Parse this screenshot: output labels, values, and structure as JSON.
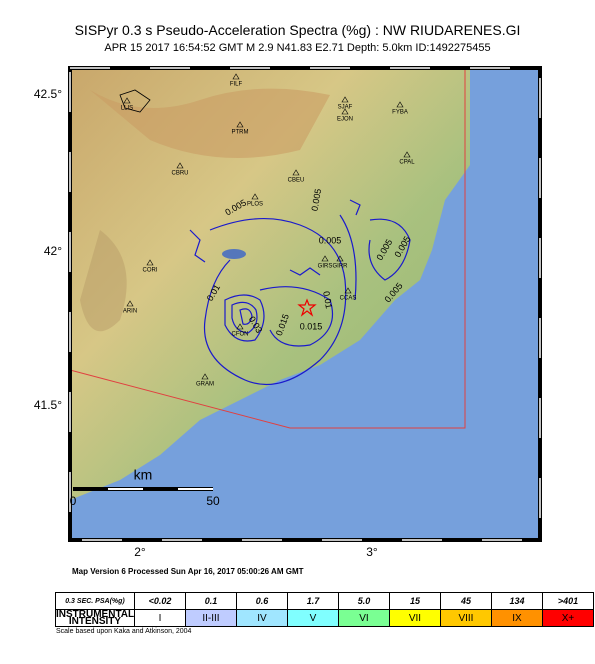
{
  "header": {
    "title": "SISPyr 0.3 s Pseudo-Acceleration Spectra (%g) : NW RIUDARENES.GI",
    "subtitle": "APR 15 2017 16:54:52  GMT    M 2.9    N41.83 E2.71    Depth: 5.0km    ID:1492275455"
  },
  "map": {
    "lat_labels": [
      "42.5°",
      "42°",
      "41.5°"
    ],
    "lon_labels": [
      "2°",
      "3°"
    ],
    "stations": [
      "FILF",
      "LLIS",
      "PTRM",
      "SJAF",
      "EJON",
      "FYBA",
      "CBRU",
      "CBEU",
      "CPAL",
      "PLOS",
      "GIRS",
      "GIRR",
      "CORI",
      "CCAS",
      "ARIN",
      "CFON",
      "GRAM"
    ],
    "contour_labels": [
      "0.005",
      "0.005",
      "0.005",
      "0.005",
      "0.005",
      "0.005",
      "0.01",
      "0.01",
      "0.03",
      "0.015",
      "0.015"
    ],
    "scale": {
      "unit": "km",
      "start": "0",
      "end": "50"
    }
  },
  "footer": {
    "version": "Map Version 6 Processed Sun Apr 16, 2017 05:00:26 AM GMT",
    "note": "Scale based upon Kaka and Atkinson, 2004"
  },
  "legend": {
    "psa_header": "0.3 SEC. PSA(%g)",
    "psa": [
      "<0.02",
      "0.1",
      "0.6",
      "1.7",
      "5.0",
      "15",
      "45",
      "134",
      ">401"
    ],
    "intensity_header": "INSTRUMENTAL INTENSITY",
    "intensity": [
      "I",
      "II-III",
      "IV",
      "V",
      "VI",
      "VII",
      "VIII",
      "IX",
      "X+"
    ]
  }
}
